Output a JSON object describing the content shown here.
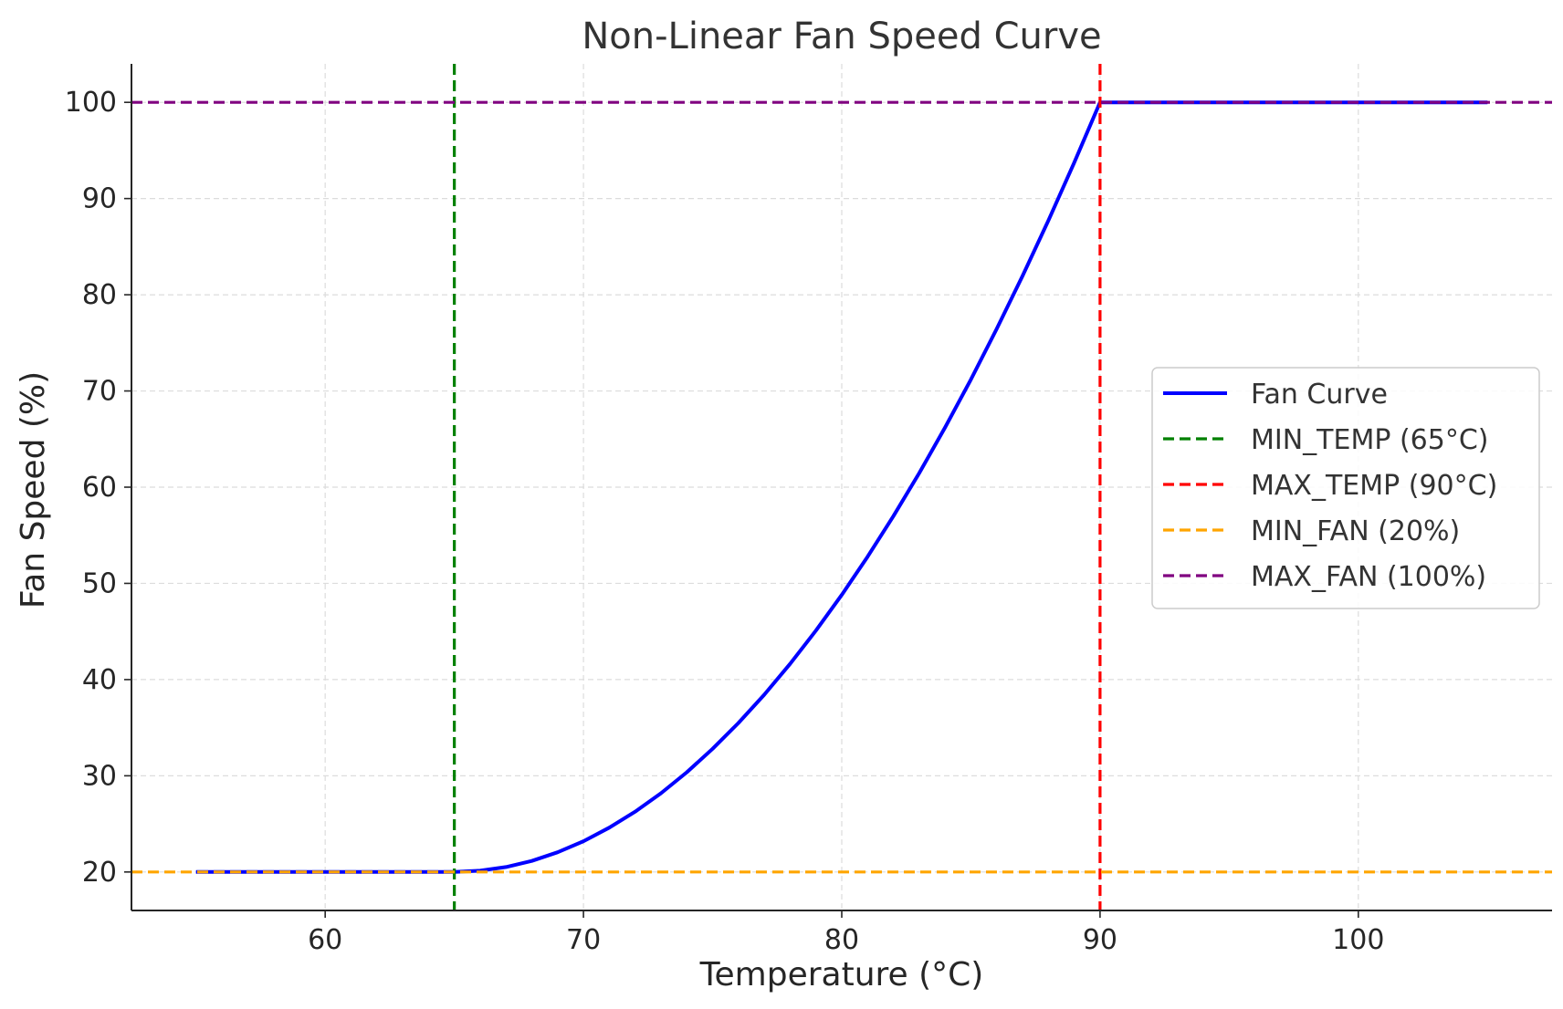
{
  "chart_data": {
    "type": "line",
    "title": "Non-Linear Fan Speed Curve",
    "xlabel": "Temperature (°C)",
    "ylabel": "Fan Speed (%)",
    "xlim": [
      52.5,
      107.5
    ],
    "ylim": [
      16,
      104
    ],
    "xticks": [
      60,
      70,
      80,
      90,
      100
    ],
    "yticks": [
      20,
      30,
      40,
      50,
      60,
      70,
      80,
      90,
      100
    ],
    "grid": true,
    "legend_position": "center-right",
    "series": [
      {
        "name": "Fan Curve",
        "color": "#0000ff",
        "style": "solid",
        "x": [
          55,
          56,
          57,
          58,
          59,
          60,
          61,
          62,
          63,
          64,
          65,
          66,
          67,
          68,
          69,
          70,
          71,
          72,
          73,
          74,
          75,
          76,
          77,
          78,
          79,
          80,
          81,
          82,
          83,
          84,
          85,
          86,
          87,
          88,
          89,
          90,
          91,
          92,
          93,
          94,
          95,
          96,
          97,
          98,
          99,
          100,
          101,
          102,
          103,
          104,
          105
        ],
        "y": [
          20,
          20,
          20,
          20,
          20,
          20,
          20,
          20,
          20,
          20,
          20,
          20.13,
          20.51,
          21.15,
          22.05,
          23.2,
          24.61,
          26.27,
          28.19,
          30.37,
          32.8,
          35.49,
          38.43,
          41.63,
          45.09,
          48.8,
          52.77,
          56.99,
          61.47,
          66.21,
          71.2,
          76.45,
          81.95,
          87.71,
          93.73,
          100,
          100,
          100,
          100,
          100,
          100,
          100,
          100,
          100,
          100,
          100,
          100,
          100,
          100,
          100,
          100
        ]
      },
      {
        "name": "MIN_TEMP (65°C)",
        "color": "#008000",
        "style": "dashed",
        "orientation": "vertical",
        "x_value": 65
      },
      {
        "name": "MAX_TEMP (90°C)",
        "color": "#ff0000",
        "style": "dashed",
        "orientation": "vertical",
        "x_value": 90
      },
      {
        "name": "MIN_FAN (20%)",
        "color": "#ffa500",
        "style": "dashed",
        "orientation": "horizontal",
        "y_value": 20
      },
      {
        "name": "MAX_FAN (100%)",
        "color": "#800080",
        "style": "dashed",
        "orientation": "horizontal",
        "y_value": 100
      }
    ]
  }
}
